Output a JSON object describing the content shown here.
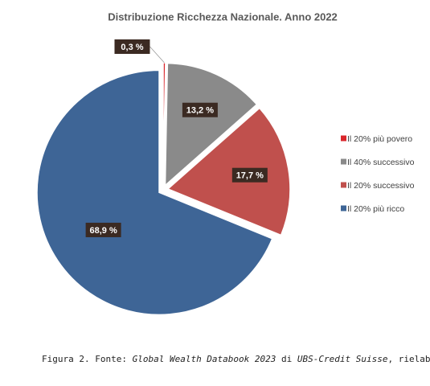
{
  "chart_data": {
    "type": "pie",
    "title": "Distribuzione Ricchezza Nazionale. Anno 2022",
    "categories": [
      "Il 20% più povero",
      "Il 40% successivo",
      "Il 20% successivo",
      "Il 20% più ricco"
    ],
    "values": [
      0.3,
      13.2,
      17.7,
      68.9
    ],
    "value_labels": [
      "0,3 %",
      "13,2 %",
      "17,7 %",
      "68,9 %"
    ],
    "colors": [
      "#d9262b",
      "#8a8a8a",
      "#c0504d",
      "#3e6596"
    ],
    "legend": "right"
  },
  "caption": [
    "Figura 2. Fonte: ",
    "Global Wealth Databook 2023",
    " di ",
    "UBS-Credit Suisse",
    ", rielaborazione Oxfam"
  ]
}
